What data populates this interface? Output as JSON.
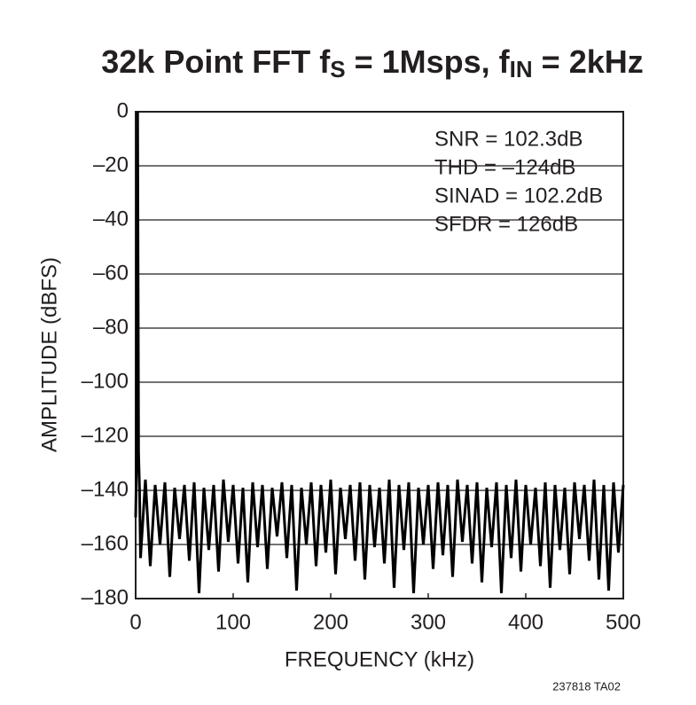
{
  "chart_data": {
    "type": "line",
    "title": [
      "32k Point FFT f",
      "S",
      " = 1Msps, f",
      "IN",
      " = 2kHz"
    ],
    "xlabel": "FREQUENCY (kHz)",
    "ylabel": "AMPLITUDE (dBFS)",
    "annotations": [
      "SNR = 102.3dB",
      "THD = –124dB",
      "SINAD = 102.2dB",
      "SFDR = 126dB"
    ],
    "footnote": "237818 TA02",
    "color": "#000000",
    "x": [
      0,
      1,
      2,
      3,
      4,
      5,
      10,
      15,
      20,
      25,
      30,
      35,
      40,
      45,
      50,
      55,
      60,
      65,
      70,
      75,
      80,
      85,
      90,
      95,
      100,
      105,
      110,
      115,
      120,
      125,
      130,
      135,
      140,
      145,
      150,
      155,
      160,
      165,
      170,
      175,
      180,
      185,
      190,
      195,
      200,
      205,
      210,
      215,
      220,
      225,
      230,
      235,
      240,
      245,
      250,
      255,
      260,
      265,
      270,
      275,
      280,
      285,
      290,
      295,
      300,
      305,
      310,
      315,
      320,
      325,
      330,
      335,
      340,
      345,
      350,
      355,
      360,
      365,
      370,
      375,
      380,
      385,
      390,
      395,
      400,
      405,
      410,
      415,
      420,
      425,
      430,
      435,
      440,
      445,
      450,
      455,
      460,
      465,
      470,
      475,
      480,
      485,
      490,
      495,
      500
    ],
    "values": [
      -150,
      -128,
      0,
      -126,
      -140,
      -165,
      -136,
      -168,
      -138,
      -160,
      -137,
      -172,
      -139,
      -158,
      -138,
      -166,
      -137,
      -178,
      -139,
      -162,
      -138,
      -170,
      -136,
      -159,
      -138,
      -167,
      -139,
      -174,
      -137,
      -161,
      -138,
      -169,
      -139,
      -157,
      -137,
      -165,
      -138,
      -177,
      -139,
      -160,
      -137,
      -168,
      -138,
      -163,
      -136,
      -171,
      -139,
      -158,
      -138,
      -166,
      -137,
      -173,
      -138,
      -161,
      -139,
      -167,
      -136,
      -176,
      -138,
      -162,
      -137,
      -178,
      -139,
      -160,
      -138,
      -169,
      -137,
      -164,
      -138,
      -172,
      -136,
      -159,
      -138,
      -167,
      -137,
      -174,
      -139,
      -161,
      -137,
      -178,
      -138,
      -165,
      -136,
      -170,
      -138,
      -160,
      -139,
      -168,
      -137,
      -176,
      -138,
      -162,
      -139,
      -171,
      -137,
      -158,
      -138,
      -166,
      -136,
      -173,
      -138,
      -177,
      -137,
      -163,
      -138
    ],
    "xlim": [
      0,
      500
    ],
    "xticks": [
      0,
      100,
      200,
      300,
      400,
      500
    ],
    "ylim": [
      -180,
      0
    ],
    "yticks": [
      0,
      {
        "value": -20,
        "label": "–20"
      },
      {
        "value": -40,
        "label": "–40"
      },
      {
        "value": -60,
        "label": "–60"
      },
      {
        "value": -80,
        "label": "–80"
      },
      {
        "value": -100,
        "label": "–100"
      },
      {
        "value": -120,
        "label": "–120"
      },
      {
        "value": -140,
        "label": "–140"
      },
      {
        "value": -160,
        "label": "–160"
      },
      {
        "value": -180,
        "label": "–180"
      }
    ],
    "grid": true
  }
}
